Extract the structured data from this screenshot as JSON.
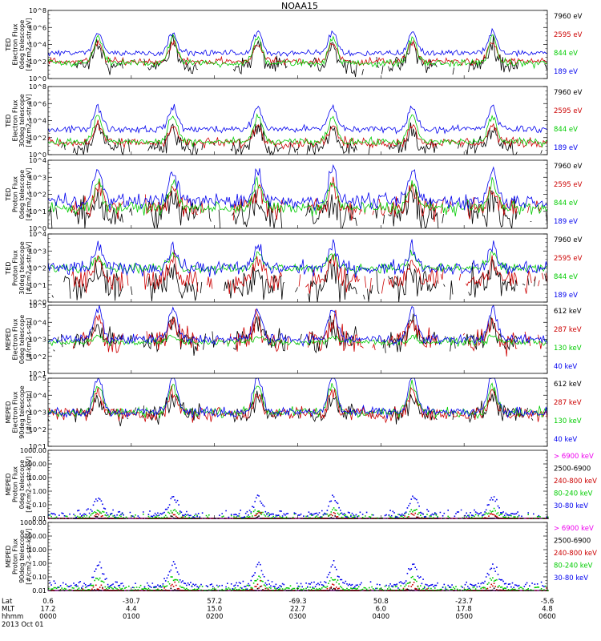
{
  "title": "NOAA15",
  "chart_data": [
    {
      "type": "line",
      "ylabel_lines": [
        "TED",
        "Electron Flux",
        "0deg telescope",
        "[#/cm2-s-str-eV]"
      ],
      "ytick_labels": [
        "10^0",
        "10^2",
        "10^4",
        "10^6",
        "10^8"
      ],
      "ylim": [
        1,
        100000000
      ],
      "log_y": true,
      "series": [
        {
          "name": "7960 eV",
          "color": "#000000",
          "base": 1.5,
          "burst": 2.5,
          "noise": 0.7,
          "sparse": true
        },
        {
          "name": "2595 eV",
          "color": "#cc0000",
          "base": 2.0,
          "burst": 2.2,
          "noise": 0.3,
          "sparse": false
        },
        {
          "name": "844 eV",
          "color": "#00cc00",
          "base": 1.8,
          "burst": 3.0,
          "noise": 0.3,
          "sparse": false
        },
        {
          "name": "189 eV",
          "color": "#0000ee",
          "base": 3.0,
          "burst": 2.5,
          "noise": 0.25,
          "sparse": false
        }
      ]
    },
    {
      "type": "line",
      "ylabel_lines": [
        "TED",
        "Electron Flux",
        "30deg telescope",
        "[#/cm2-s-str-eV]"
      ],
      "ytick_labels": [
        "10^0",
        "10^2",
        "10^4",
        "10^6",
        "10^8"
      ],
      "ylim": [
        1,
        100000000
      ],
      "log_y": true,
      "series": [
        {
          "name": "7960 eV",
          "color": "#000000",
          "base": 0.8,
          "burst": 2.2,
          "noise": 0.8,
          "sparse": true
        },
        {
          "name": "2595 eV",
          "color": "#cc0000",
          "base": 1.4,
          "burst": 2.0,
          "noise": 0.4,
          "sparse": false
        },
        {
          "name": "844 eV",
          "color": "#00cc00",
          "base": 1.5,
          "burst": 3.0,
          "noise": 0.3,
          "sparse": false
        },
        {
          "name": "189 eV",
          "color": "#0000ee",
          "base": 3.0,
          "burst": 2.6,
          "noise": 0.3,
          "sparse": false
        }
      ]
    },
    {
      "type": "line",
      "ylabel_lines": [
        "TED",
        "Proton Flux",
        "0deg telescope",
        "[#/cm2-s-str-eV]"
      ],
      "ytick_labels": [
        "10^0",
        "10^1",
        "10^2",
        "10^3",
        "10^4"
      ],
      "ylim": [
        1,
        10000
      ],
      "log_y": true,
      "series": [
        {
          "name": "7960 eV",
          "color": "#000000",
          "base": 0.8,
          "burst": 1.0,
          "noise": 0.7,
          "sparse": true
        },
        {
          "name": "2595 eV",
          "color": "#cc0000",
          "base": 1.2,
          "burst": 1.2,
          "noise": 0.5,
          "sparse": true
        },
        {
          "name": "844 eV",
          "color": "#00cc00",
          "base": 1.2,
          "burst": 1.5,
          "noise": 0.25,
          "sparse": false
        },
        {
          "name": "189 eV",
          "color": "#0000ee",
          "base": 1.6,
          "burst": 1.8,
          "noise": 0.3,
          "sparse": false
        }
      ]
    },
    {
      "type": "line",
      "ylabel_lines": [
        "TED",
        "Proton Flux",
        "30deg telescope",
        "[#/cm2-s-str-eV]"
      ],
      "ytick_labels": [
        "10^0",
        "10^1",
        "10^2",
        "10^3",
        "10^4"
      ],
      "ylim": [
        1,
        10000
      ],
      "log_y": true,
      "series": [
        {
          "name": "7960 eV",
          "color": "#000000",
          "base": 0.9,
          "burst": 1.0,
          "noise": 0.7,
          "sparse": true
        },
        {
          "name": "2595 eV",
          "color": "#cc0000",
          "base": 1.3,
          "burst": 1.2,
          "noise": 0.5,
          "sparse": true
        },
        {
          "name": "844 eV",
          "color": "#00cc00",
          "base": 2.0,
          "burst": 0.8,
          "noise": 0.2,
          "sparse": false
        },
        {
          "name": "189 eV",
          "color": "#0000ee",
          "base": 2.0,
          "burst": 1.2,
          "noise": 0.3,
          "sparse": false
        }
      ]
    },
    {
      "type": "line",
      "ylabel_lines": [
        "MEPED",
        "Electron Flux",
        "0deg telescope",
        "[#/cm2-s-str]"
      ],
      "ytick_labels": [
        "10^1",
        "10^2",
        "10^3",
        "10^4",
        "10^5"
      ],
      "ylim": [
        10,
        100000
      ],
      "log_y": true,
      "series": [
        {
          "name": "612 keV",
          "color": "#000000",
          "base": 1.9,
          "burst": 1.0,
          "noise": 0.5,
          "sparse": true
        },
        {
          "name": "287 keV",
          "color": "#cc0000",
          "base": 1.9,
          "burst": 1.2,
          "noise": 0.5,
          "sparse": true
        },
        {
          "name": "130 keV",
          "color": "#00cc00",
          "base": 1.85,
          "burst": 0.3,
          "noise": 0.15,
          "sparse": false
        },
        {
          "name": "40 keV",
          "color": "#0000ee",
          "base": 2.0,
          "burst": 1.8,
          "noise": 0.2,
          "sparse": false
        }
      ]
    },
    {
      "type": "line",
      "ylabel_lines": [
        "MEPED",
        "Electron Flux",
        "90deg telescope",
        "[#/cm2-s-str]"
      ],
      "ytick_labels": [
        "10^1",
        "10^2",
        "10^3",
        "10^4",
        "10^5"
      ],
      "ylim": [
        10,
        100000
      ],
      "log_y": true,
      "series": [
        {
          "name": "612 keV",
          "color": "#000000",
          "base": 1.9,
          "burst": 1.0,
          "noise": 0.4,
          "sparse": true
        },
        {
          "name": "287 keV",
          "color": "#cc0000",
          "base": 1.9,
          "burst": 1.3,
          "noise": 0.3,
          "sparse": false
        },
        {
          "name": "130 keV",
          "color": "#00cc00",
          "base": 2.0,
          "burst": 1.6,
          "noise": 0.2,
          "sparse": false
        },
        {
          "name": "40 keV",
          "color": "#0000ee",
          "base": 2.0,
          "burst": 2.2,
          "noise": 0.2,
          "sparse": false
        }
      ]
    },
    {
      "type": "scatter",
      "ylabel_lines": [
        "MEPED",
        "Proton Flux",
        "0deg telescope",
        "[#/cm2-s-str-keV]"
      ],
      "ytick_labels": [
        "0.01",
        "0.10",
        "1.00",
        "10.00",
        "100.00",
        "1000.00"
      ],
      "ylim": [
        0.01,
        1000
      ],
      "log_y": true,
      "series": [
        {
          "name": "> 6900 keV",
          "color": "#ee00ee",
          "base": -0.6,
          "burst": 0.3,
          "noise": 0.15,
          "sparse": false
        },
        {
          "name": "2500-6900",
          "color": "#000000",
          "base": -0.3,
          "burst": 0.3,
          "noise": 0.2,
          "sparse": true
        },
        {
          "name": "240-800 keV",
          "color": "#cc0000",
          "base": -0.2,
          "burst": 0.5,
          "noise": 0.2,
          "sparse": true
        },
        {
          "name": "80-240 keV",
          "color": "#00cc00",
          "base": 0.1,
          "burst": 0.5,
          "noise": 0.15,
          "sparse": true
        },
        {
          "name": "30-80 keV",
          "color": "#0000ee",
          "base": 0.3,
          "burst": 1.2,
          "noise": 0.2,
          "sparse": true
        }
      ]
    },
    {
      "type": "scatter",
      "ylabel_lines": [
        "MEPED",
        "Proton Flux",
        "90deg telescope",
        "[#/cm2-s-str-keV]"
      ],
      "ytick_labels": [
        "0.01",
        "0.10",
        "1.00",
        "10.00",
        "100.00",
        "1000.00"
      ],
      "ylim": [
        0.01,
        1000
      ],
      "log_y": true,
      "series": [
        {
          "name": "> 6900 keV",
          "color": "#ee00ee",
          "base": -0.6,
          "burst": 0.4,
          "noise": 0.15,
          "sparse": false
        },
        {
          "name": "2500-6900",
          "color": "#000000",
          "base": -0.3,
          "burst": 0.4,
          "noise": 0.2,
          "sparse": true
        },
        {
          "name": "240-800 keV",
          "color": "#cc0000",
          "base": -0.2,
          "burst": 0.6,
          "noise": 0.2,
          "sparse": true
        },
        {
          "name": "80-240 keV",
          "color": "#00cc00",
          "base": 0.1,
          "burst": 0.8,
          "noise": 0.15,
          "sparse": false
        },
        {
          "name": "30-80 keV",
          "color": "#0000ee",
          "base": 0.4,
          "burst": 1.5,
          "noise": 0.2,
          "sparse": true
        }
      ]
    }
  ],
  "x_axis": {
    "rows": [
      {
        "label": "Lat",
        "values": [
          "0.6",
          "-30.7",
          "57.2",
          "-69.3",
          "50.8",
          "-23.7",
          "-5.6"
        ]
      },
      {
        "label": "MLT",
        "values": [
          "17.2",
          "4.4",
          "15.0",
          "22.7",
          "6.0",
          "17.8",
          "4.8"
        ]
      },
      {
        "label": "hhmm",
        "values": [
          "0000",
          "0100",
          "0200",
          "0300",
          "0400",
          "0500",
          "0600"
        ]
      }
    ],
    "date": "2013 Oct 01"
  },
  "passes": [
    0.1,
    0.25,
    0.42,
    0.57,
    0.73,
    0.89
  ]
}
